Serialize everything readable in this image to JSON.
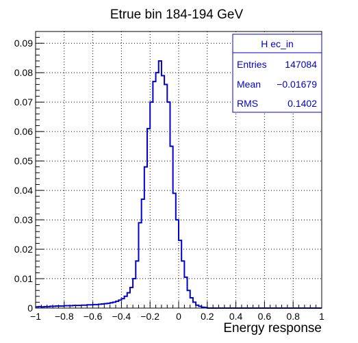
{
  "chart_data": {
    "type": "histogram",
    "title": "Etrue bin 184-194 GeV",
    "xlabel": "Energy response",
    "ylabel": "",
    "xlim": [
      -1,
      1
    ],
    "ylim": [
      0,
      0.094
    ],
    "grid": true,
    "x_ticks": [
      -1,
      -0.8,
      -0.6,
      -0.4,
      -0.2,
      0,
      0.2,
      0.4,
      0.6,
      0.8,
      1
    ],
    "x_tick_labels": [
      "−1",
      "−0.8",
      "−0.6",
      "−0.4",
      "−0.2",
      "0",
      "0.2",
      "0.4",
      "0.6",
      "0.8",
      "1"
    ],
    "y_ticks": [
      0,
      0.01,
      0.02,
      0.03,
      0.04,
      0.05,
      0.06,
      0.07,
      0.08,
      0.09
    ],
    "y_tick_labels": [
      "0",
      "0.01",
      "0.02",
      "0.03",
      "0.04",
      "0.05",
      "0.06",
      "0.07",
      "0.08",
      "0.09"
    ],
    "bin_width": 0.02,
    "bins_start": -1,
    "color": "#0000cc",
    "values": [
      0.0004,
      0.0005,
      0.0004,
      0.0005,
      0.0005,
      0.0006,
      0.0006,
      0.0007,
      0.0007,
      0.0007,
      0.0008,
      0.0008,
      0.0008,
      0.0009,
      0.0009,
      0.0009,
      0.001,
      0.001,
      0.0011,
      0.0011,
      0.0012,
      0.0012,
      0.0013,
      0.0014,
      0.0015,
      0.0016,
      0.0018,
      0.002,
      0.0023,
      0.0027,
      0.0032,
      0.004,
      0.0052,
      0.007,
      0.01,
      0.016,
      0.029,
      0.037,
      0.048,
      0.061,
      0.07,
      0.077,
      0.08,
      0.084,
      0.079,
      0.076,
      0.07,
      0.055,
      0.039,
      0.03,
      0.023,
      0.016,
      0.0105,
      0.006,
      0.0035,
      0.002,
      0.001,
      0.0006,
      0.0003,
      0.0002,
      0,
      0,
      0,
      0,
      0,
      0,
      0,
      0,
      0,
      0,
      0,
      0,
      0,
      0,
      0,
      0,
      0,
      0,
      0,
      0,
      0,
      0,
      0,
      0,
      0,
      0,
      0,
      0,
      0,
      0,
      0,
      0,
      0,
      0,
      0,
      0,
      0,
      0,
      0,
      0
    ]
  },
  "stats_box": {
    "title": "H ec_in",
    "entries_label": "Entries",
    "entries_value": "147084",
    "mean_label": "Mean",
    "mean_value": "−0.01679",
    "rms_label": "RMS",
    "rms_value": "0.1402"
  }
}
